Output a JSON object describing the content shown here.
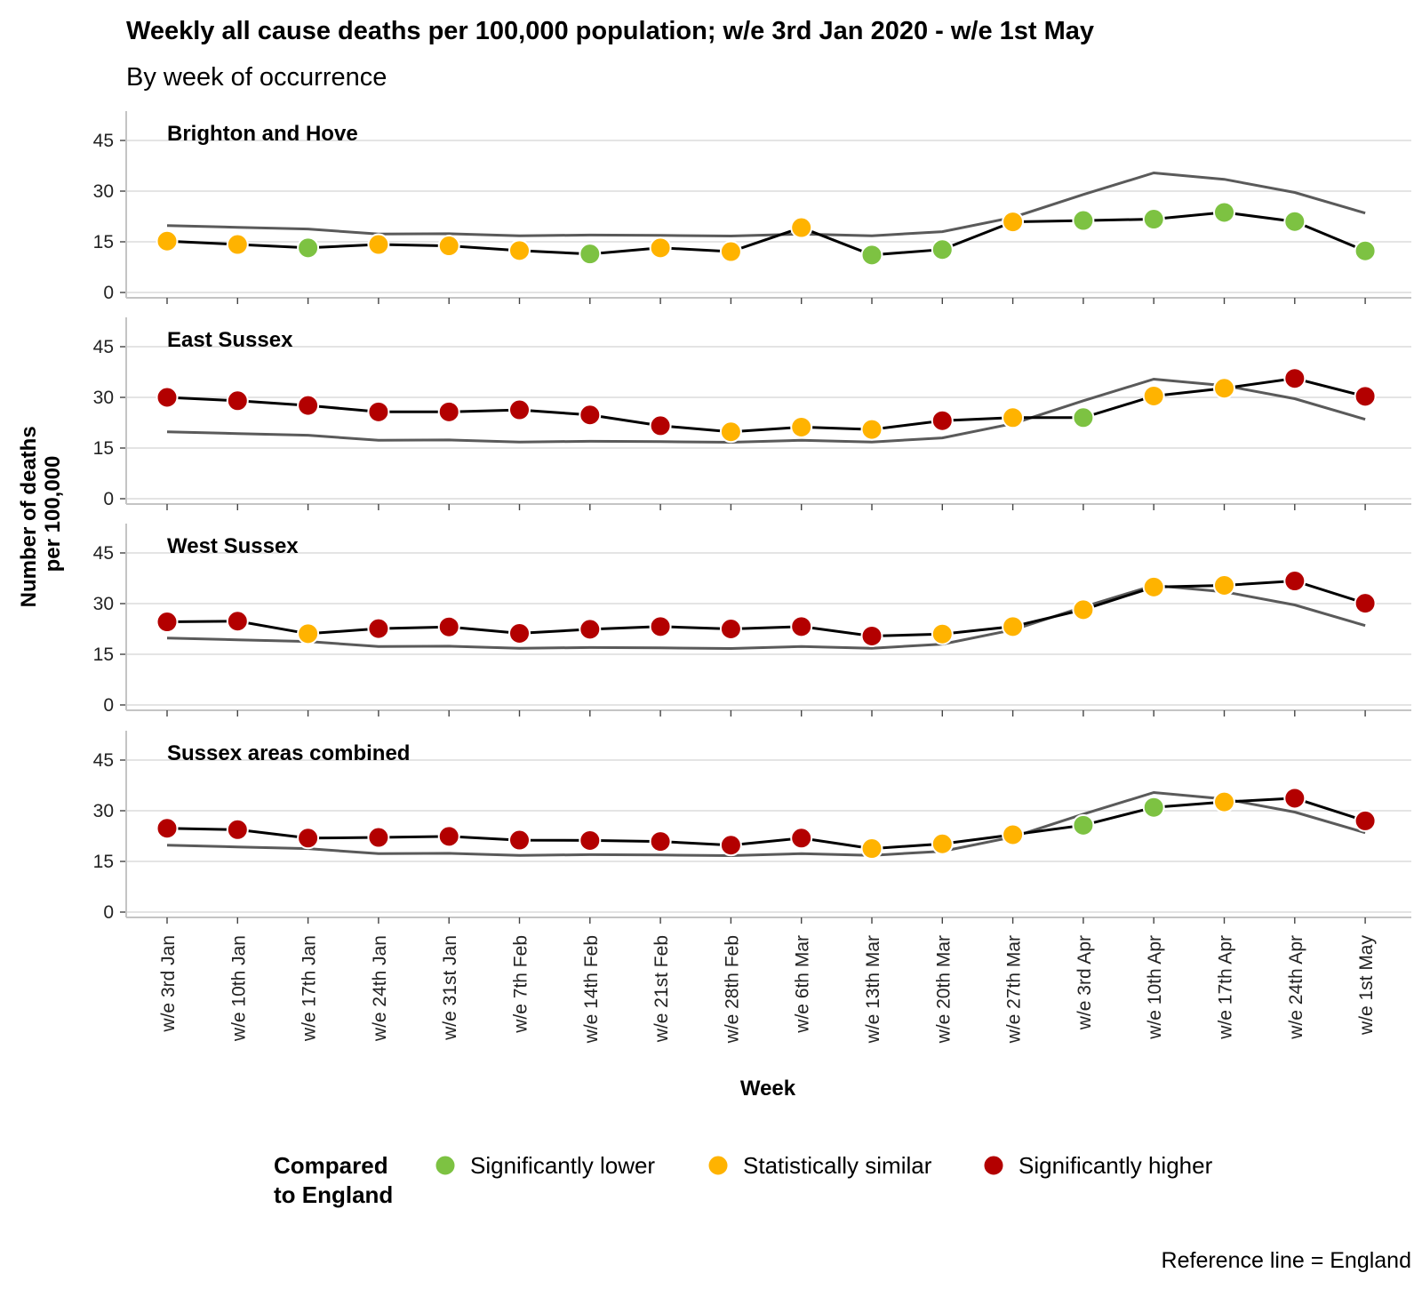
{
  "chart_data": {
    "type": "line",
    "title": "Weekly all cause deaths per 100,000 population; w/e 3rd Jan 2020 - w/e 1st May",
    "subtitle": "By week of occurrence",
    "xlabel": "Week",
    "ylabel": [
      "Number of deaths",
      "per 100,000"
    ],
    "ylim": [
      0,
      50
    ],
    "yticks": [
      0,
      15,
      30,
      45
    ],
    "grid": true,
    "legend_position": "bottom",
    "legend_title": [
      "Compared",
      "to England"
    ],
    "caption": "Reference line = England",
    "categories": [
      "w/e 3rd Jan",
      "w/e 10th Jan",
      "w/e 17th Jan",
      "w/e 24th Jan",
      "w/e 31st Jan",
      "w/e 7th Feb",
      "w/e 14th Feb",
      "w/e 21st Feb",
      "w/e 28th Feb",
      "w/e 6th Mar",
      "w/e 13th Mar",
      "w/e 20th Mar",
      "w/e 27th Mar",
      "w/e 3rd Apr",
      "w/e 10th Apr",
      "w/e 17th Apr",
      "w/e 24th Apr",
      "w/e 1st May"
    ],
    "comparison_categories": [
      {
        "key": "lower",
        "label": "Significantly lower",
        "color": "#7dc242"
      },
      {
        "key": "similar",
        "label": "Statistically similar",
        "color": "#ffb300"
      },
      {
        "key": "higher",
        "label": "Significantly higher",
        "color": "#b30000"
      }
    ],
    "reference": {
      "name": "England",
      "color": "#5a5a5a",
      "values": [
        19.8,
        19.3,
        18.8,
        17.3,
        17.4,
        16.8,
        17.0,
        16.9,
        16.7,
        17.3,
        16.8,
        18.0,
        22.2,
        29.0,
        35.4,
        33.5,
        29.6,
        23.5
      ]
    },
    "panels": [
      {
        "name": "Brighton and Hove",
        "values": [
          15.2,
          14.2,
          13.2,
          14.2,
          13.8,
          12.4,
          11.4,
          13.2,
          12.1,
          19.2,
          11.1,
          12.7,
          20.9,
          21.3,
          21.7,
          23.7,
          21.0,
          12.3
        ],
        "status": [
          "similar",
          "similar",
          "lower",
          "similar",
          "similar",
          "similar",
          "lower",
          "similar",
          "similar",
          "similar",
          "lower",
          "lower",
          "similar",
          "lower",
          "lower",
          "lower",
          "lower",
          "lower"
        ]
      },
      {
        "name": "East Sussex",
        "values": [
          30.0,
          29.0,
          27.6,
          25.7,
          25.7,
          26.3,
          24.8,
          21.6,
          19.8,
          21.2,
          20.5,
          23.1,
          24.0,
          24.0,
          30.4,
          32.7,
          35.6,
          30.3
        ],
        "status": [
          "higher",
          "higher",
          "higher",
          "higher",
          "higher",
          "higher",
          "higher",
          "higher",
          "similar",
          "similar",
          "similar",
          "higher",
          "similar",
          "lower",
          "similar",
          "similar",
          "higher",
          "higher"
        ]
      },
      {
        "name": "West Sussex",
        "values": [
          24.6,
          24.8,
          21.1,
          22.6,
          23.1,
          21.2,
          22.4,
          23.2,
          22.5,
          23.2,
          20.4,
          21.0,
          23.2,
          28.2,
          34.9,
          35.4,
          36.7,
          30.1
        ],
        "status": [
          "higher",
          "higher",
          "similar",
          "higher",
          "higher",
          "higher",
          "higher",
          "higher",
          "higher",
          "higher",
          "higher",
          "similar",
          "similar",
          "similar",
          "similar",
          "similar",
          "higher",
          "higher"
        ]
      },
      {
        "name": "Sussex areas combined",
        "values": [
          24.8,
          24.4,
          21.9,
          22.1,
          22.4,
          21.3,
          21.2,
          20.9,
          19.8,
          21.9,
          18.8,
          20.2,
          22.9,
          25.7,
          31.0,
          32.6,
          33.7,
          27.0
        ],
        "status": [
          "higher",
          "higher",
          "higher",
          "higher",
          "higher",
          "higher",
          "higher",
          "higher",
          "higher",
          "higher",
          "similar",
          "similar",
          "similar",
          "lower",
          "lower",
          "similar",
          "higher",
          "higher"
        ]
      }
    ]
  }
}
